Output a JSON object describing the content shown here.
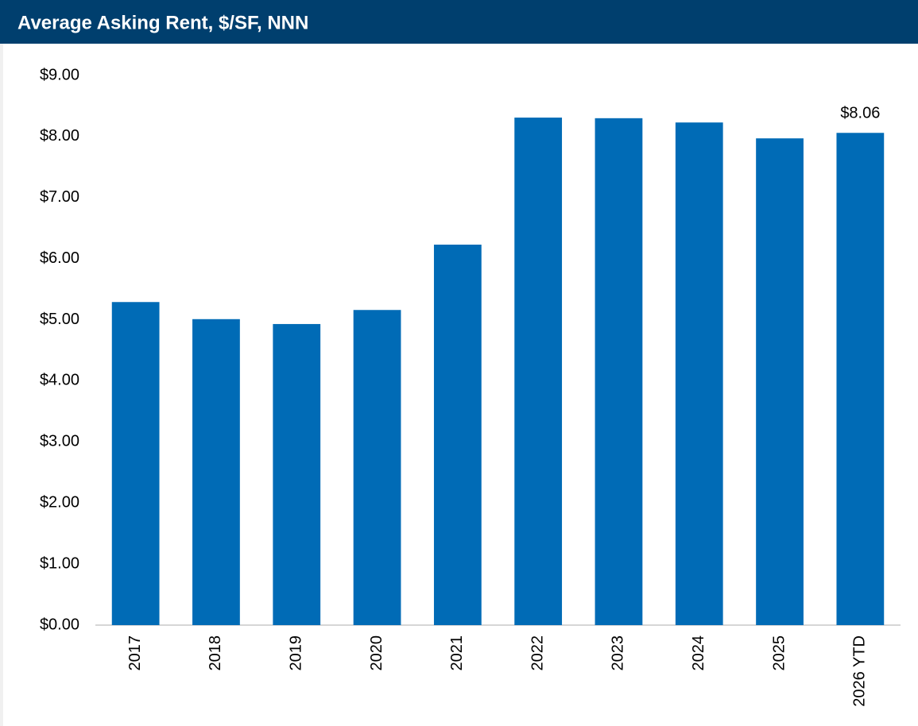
{
  "chart_data": {
    "type": "bar",
    "title": "Average Asking Rent, $/SF, NNN",
    "categories": [
      "2017",
      "2018",
      "2019",
      "2020",
      "2021",
      "2022",
      "2023",
      "2024",
      "2025",
      "2026 YTD"
    ],
    "values": [
      5.29,
      5.01,
      4.93,
      5.16,
      6.23,
      8.31,
      8.3,
      8.23,
      7.97,
      8.06
    ],
    "value_labels": [
      null,
      null,
      null,
      null,
      null,
      null,
      null,
      null,
      null,
      "$8.06"
    ],
    "color": "#006bb6",
    "ylim": [
      0,
      9
    ],
    "yticks": [
      {
        "value": 0,
        "label": "$0.00"
      },
      {
        "value": 1,
        "label": "$1.00"
      },
      {
        "value": 2,
        "label": "$2.00"
      },
      {
        "value": 3,
        "label": "$3.00"
      },
      {
        "value": 4,
        "label": "$4.00"
      },
      {
        "value": 5,
        "label": "$5.00"
      },
      {
        "value": 6,
        "label": "$6.00"
      },
      {
        "value": 7,
        "label": "$7.00"
      },
      {
        "value": 8,
        "label": "$8.00"
      },
      {
        "value": 9,
        "label": "$9.00"
      }
    ],
    "grid": false
  }
}
